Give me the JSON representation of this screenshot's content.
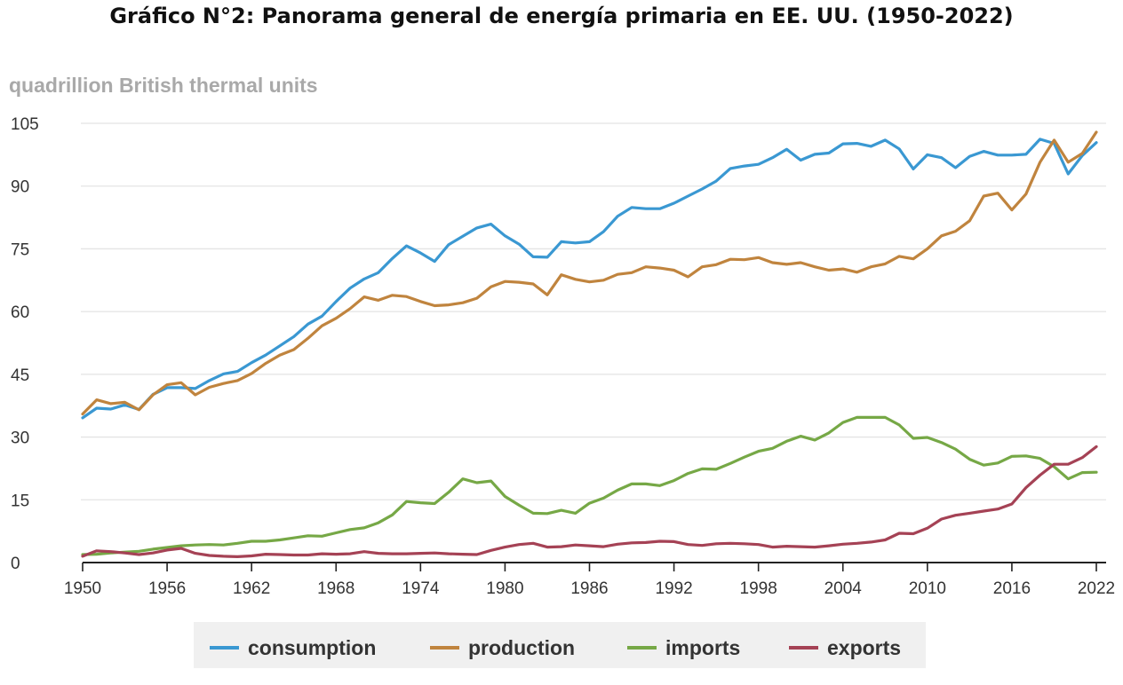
{
  "title": "Gráfico N°2: Panorama general de energía primaria en EE. UU. (1950-2022)",
  "chart_data": {
    "type": "line",
    "unit_label": "quadrillion British thermal units",
    "x_ticks": [
      "1950",
      "1956",
      "1962",
      "1968",
      "1974",
      "1980",
      "1986",
      "1992",
      "1998",
      "2004",
      "2010",
      "2016",
      "2022"
    ],
    "y_ticks": [
      "0",
      "15",
      "30",
      "45",
      "60",
      "75",
      "90",
      "105"
    ],
    "xlim": [
      1950,
      2022
    ],
    "ylim": [
      0,
      105
    ],
    "grid": true,
    "legend_position": "bottom",
    "x": [
      1950,
      1951,
      1952,
      1953,
      1954,
      1955,
      1956,
      1957,
      1958,
      1959,
      1960,
      1961,
      1962,
      1963,
      1964,
      1965,
      1966,
      1967,
      1968,
      1969,
      1970,
      1971,
      1972,
      1973,
      1974,
      1975,
      1976,
      1977,
      1978,
      1979,
      1980,
      1981,
      1982,
      1983,
      1984,
      1985,
      1986,
      1987,
      1988,
      1989,
      1990,
      1991,
      1992,
      1993,
      1994,
      1995,
      1996,
      1997,
      1998,
      1999,
      2000,
      2001,
      2002,
      2003,
      2004,
      2005,
      2006,
      2007,
      2008,
      2009,
      2010,
      2011,
      2012,
      2013,
      2014,
      2015,
      2016,
      2017,
      2018,
      2019,
      2020,
      2021,
      2022
    ],
    "series": [
      {
        "name": "consumption",
        "color": "#3a98d2",
        "values": [
          34.6,
          36.9,
          36.7,
          37.7,
          36.6,
          40.2,
          41.8,
          41.8,
          41.6,
          43.5,
          45.1,
          45.7,
          47.8,
          49.6,
          51.8,
          54.0,
          57.0,
          58.9,
          62.4,
          65.6,
          67.8,
          69.3,
          72.7,
          75.7,
          74.0,
          72.0,
          76.0,
          78.0,
          80.0,
          80.9,
          78.1,
          76.1,
          73.1,
          73.0,
          76.7,
          76.4,
          76.7,
          79.1,
          82.8,
          84.9,
          84.6,
          84.6,
          85.9,
          87.6,
          89.3,
          91.2,
          94.2,
          94.8,
          95.2,
          96.8,
          98.8,
          96.2,
          97.6,
          97.9,
          100.1,
          100.2,
          99.5,
          101.0,
          98.9,
          94.1,
          97.5,
          96.8,
          94.4,
          97.1,
          98.3,
          97.4,
          97.4,
          97.6,
          101.2,
          100.2,
          92.9,
          97.3,
          100.4
        ]
      },
      {
        "name": "production",
        "color": "#c0843e",
        "values": [
          35.5,
          38.9,
          38.0,
          38.3,
          36.5,
          40.1,
          42.5,
          43.0,
          40.1,
          41.9,
          42.8,
          43.5,
          45.2,
          47.6,
          49.6,
          50.9,
          53.6,
          56.6,
          58.4,
          60.7,
          63.5,
          62.7,
          63.9,
          63.6,
          62.4,
          61.4,
          61.6,
          62.1,
          63.2,
          65.9,
          67.2,
          67.0,
          66.6,
          64.0,
          68.8,
          67.7,
          67.1,
          67.5,
          68.9,
          69.3,
          70.7,
          70.4,
          69.9,
          68.3,
          70.7,
          71.2,
          72.5,
          72.4,
          72.9,
          71.7,
          71.3,
          71.7,
          70.7,
          69.9,
          70.2,
          69.4,
          70.7,
          71.4,
          73.2,
          72.6,
          75.0,
          78.1,
          79.2,
          81.7,
          87.6,
          88.3,
          84.3,
          88.1,
          95.7,
          101.0,
          95.7,
          97.8,
          102.9
        ]
      },
      {
        "name": "imports",
        "color": "#76a846",
        "values": [
          1.9,
          2.0,
          2.3,
          2.5,
          2.7,
          3.2,
          3.6,
          4.0,
          4.2,
          4.3,
          4.2,
          4.6,
          5.1,
          5.1,
          5.4,
          5.9,
          6.4,
          6.3,
          7.1,
          7.9,
          8.3,
          9.5,
          11.4,
          14.6,
          14.3,
          14.1,
          16.8,
          20.0,
          19.1,
          19.5,
          15.8,
          13.7,
          11.8,
          11.7,
          12.5,
          11.8,
          14.2,
          15.4,
          17.3,
          18.8,
          18.8,
          18.4,
          19.6,
          21.3,
          22.4,
          22.3,
          23.7,
          25.2,
          26.6,
          27.3,
          29.0,
          30.2,
          29.3,
          31.0,
          33.5,
          34.7,
          34.7,
          34.7,
          32.9,
          29.7,
          29.9,
          28.7,
          27.1,
          24.7,
          23.3,
          23.8,
          25.4,
          25.5,
          24.9,
          22.9,
          20.0,
          21.5,
          21.6
        ]
      },
      {
        "name": "exports",
        "color": "#a54255",
        "values": [
          1.5,
          2.8,
          2.6,
          2.3,
          1.9,
          2.3,
          3.0,
          3.4,
          2.2,
          1.7,
          1.5,
          1.4,
          1.6,
          2.0,
          1.9,
          1.8,
          1.8,
          2.1,
          2.0,
          2.1,
          2.6,
          2.2,
          2.1,
          2.1,
          2.2,
          2.3,
          2.1,
          2.0,
          1.9,
          2.9,
          3.7,
          4.3,
          4.6,
          3.7,
          3.8,
          4.2,
          4.0,
          3.8,
          4.4,
          4.7,
          4.8,
          5.1,
          5.0,
          4.3,
          4.1,
          4.5,
          4.6,
          4.5,
          4.3,
          3.7,
          3.9,
          3.8,
          3.7,
          4.0,
          4.4,
          4.6,
          4.9,
          5.4,
          7.0,
          6.9,
          8.2,
          10.4,
          11.3,
          11.8,
          12.3,
          12.8,
          14.0,
          17.9,
          20.9,
          23.5,
          23.5,
          25.1,
          27.7
        ]
      }
    ]
  }
}
